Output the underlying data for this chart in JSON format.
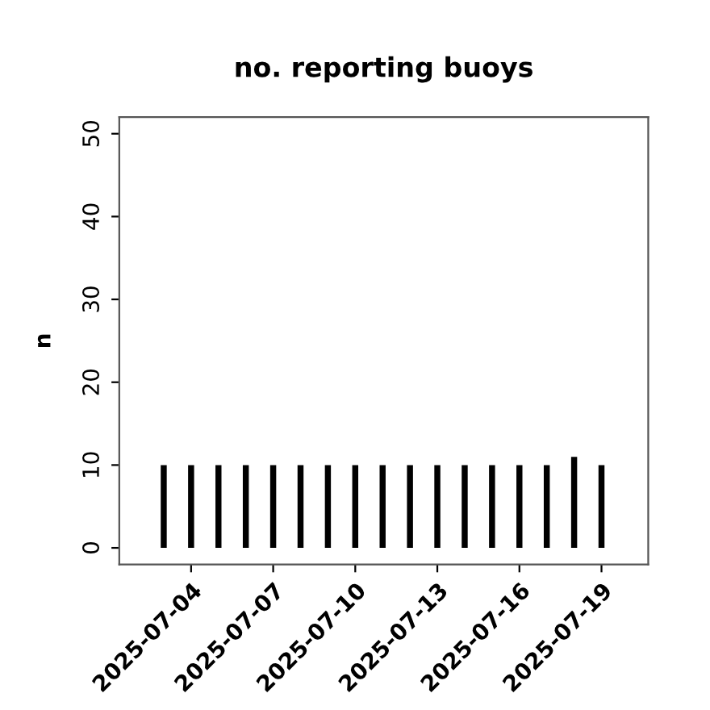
{
  "chart_data": {
    "type": "bar",
    "title": "no. reporting buoys",
    "ylabel": "n",
    "x": [
      "2025-07-03",
      "2025-07-04",
      "2025-07-05",
      "2025-07-06",
      "2025-07-07",
      "2025-07-08",
      "2025-07-09",
      "2025-07-10",
      "2025-07-11",
      "2025-07-12",
      "2025-07-13",
      "2025-07-14",
      "2025-07-15",
      "2025-07-16",
      "2025-07-17",
      "2025-07-18",
      "2025-07-19"
    ],
    "values": [
      10,
      10,
      10,
      10,
      10,
      10,
      10,
      10,
      10,
      10,
      10,
      10,
      10,
      10,
      10,
      11,
      10
    ],
    "color": "#000000",
    "xlim": [
      "2025-07-01T09:00",
      "2025-07-20T17:00"
    ],
    "xticks": [
      "2025-07-04",
      "2025-07-07",
      "2025-07-10",
      "2025-07-13",
      "2025-07-16",
      "2025-07-19"
    ],
    "ylim": [
      -2,
      52
    ],
    "yticks": [
      0,
      10,
      20,
      30,
      40,
      50
    ],
    "grid": false,
    "legend": false
  }
}
